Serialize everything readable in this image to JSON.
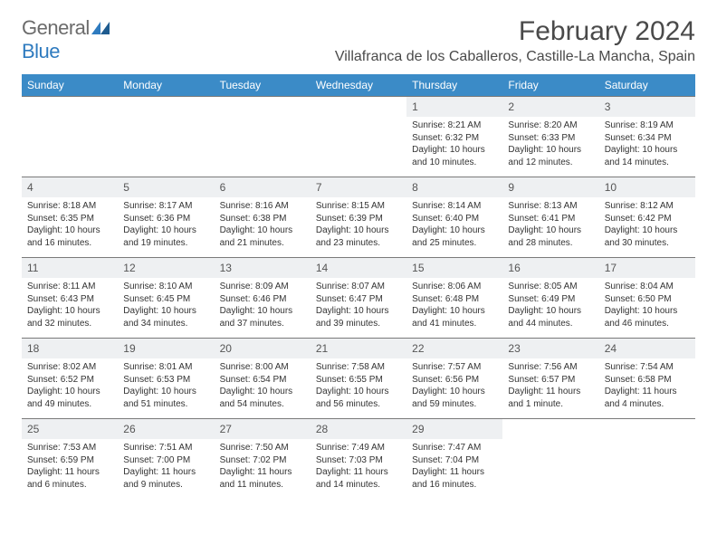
{
  "brand": {
    "part1": "General",
    "part2": "Blue"
  },
  "header": {
    "month_title": "February 2024",
    "location": "Villafranca de los Caballeros, Castille-La Mancha, Spain"
  },
  "colors": {
    "header_bg": "#3b8bc7",
    "header_fg": "#ffffff",
    "daynum_bg": "#eef0f2",
    "border": "#7a7a7a",
    "text": "#333333",
    "brand_gray": "#6b6b6b",
    "brand_blue": "#2f7bbf"
  },
  "day_names": [
    "Sunday",
    "Monday",
    "Tuesday",
    "Wednesday",
    "Thursday",
    "Friday",
    "Saturday"
  ],
  "weeks": [
    [
      null,
      null,
      null,
      null,
      {
        "n": "1",
        "sr": "Sunrise: 8:21 AM",
        "ss": "Sunset: 6:32 PM",
        "dl": "Daylight: 10 hours and 10 minutes."
      },
      {
        "n": "2",
        "sr": "Sunrise: 8:20 AM",
        "ss": "Sunset: 6:33 PM",
        "dl": "Daylight: 10 hours and 12 minutes."
      },
      {
        "n": "3",
        "sr": "Sunrise: 8:19 AM",
        "ss": "Sunset: 6:34 PM",
        "dl": "Daylight: 10 hours and 14 minutes."
      }
    ],
    [
      {
        "n": "4",
        "sr": "Sunrise: 8:18 AM",
        "ss": "Sunset: 6:35 PM",
        "dl": "Daylight: 10 hours and 16 minutes."
      },
      {
        "n": "5",
        "sr": "Sunrise: 8:17 AM",
        "ss": "Sunset: 6:36 PM",
        "dl": "Daylight: 10 hours and 19 minutes."
      },
      {
        "n": "6",
        "sr": "Sunrise: 8:16 AM",
        "ss": "Sunset: 6:38 PM",
        "dl": "Daylight: 10 hours and 21 minutes."
      },
      {
        "n": "7",
        "sr": "Sunrise: 8:15 AM",
        "ss": "Sunset: 6:39 PM",
        "dl": "Daylight: 10 hours and 23 minutes."
      },
      {
        "n": "8",
        "sr": "Sunrise: 8:14 AM",
        "ss": "Sunset: 6:40 PM",
        "dl": "Daylight: 10 hours and 25 minutes."
      },
      {
        "n": "9",
        "sr": "Sunrise: 8:13 AM",
        "ss": "Sunset: 6:41 PM",
        "dl": "Daylight: 10 hours and 28 minutes."
      },
      {
        "n": "10",
        "sr": "Sunrise: 8:12 AM",
        "ss": "Sunset: 6:42 PM",
        "dl": "Daylight: 10 hours and 30 minutes."
      }
    ],
    [
      {
        "n": "11",
        "sr": "Sunrise: 8:11 AM",
        "ss": "Sunset: 6:43 PM",
        "dl": "Daylight: 10 hours and 32 minutes."
      },
      {
        "n": "12",
        "sr": "Sunrise: 8:10 AM",
        "ss": "Sunset: 6:45 PM",
        "dl": "Daylight: 10 hours and 34 minutes."
      },
      {
        "n": "13",
        "sr": "Sunrise: 8:09 AM",
        "ss": "Sunset: 6:46 PM",
        "dl": "Daylight: 10 hours and 37 minutes."
      },
      {
        "n": "14",
        "sr": "Sunrise: 8:07 AM",
        "ss": "Sunset: 6:47 PM",
        "dl": "Daylight: 10 hours and 39 minutes."
      },
      {
        "n": "15",
        "sr": "Sunrise: 8:06 AM",
        "ss": "Sunset: 6:48 PM",
        "dl": "Daylight: 10 hours and 41 minutes."
      },
      {
        "n": "16",
        "sr": "Sunrise: 8:05 AM",
        "ss": "Sunset: 6:49 PM",
        "dl": "Daylight: 10 hours and 44 minutes."
      },
      {
        "n": "17",
        "sr": "Sunrise: 8:04 AM",
        "ss": "Sunset: 6:50 PM",
        "dl": "Daylight: 10 hours and 46 minutes."
      }
    ],
    [
      {
        "n": "18",
        "sr": "Sunrise: 8:02 AM",
        "ss": "Sunset: 6:52 PM",
        "dl": "Daylight: 10 hours and 49 minutes."
      },
      {
        "n": "19",
        "sr": "Sunrise: 8:01 AM",
        "ss": "Sunset: 6:53 PM",
        "dl": "Daylight: 10 hours and 51 minutes."
      },
      {
        "n": "20",
        "sr": "Sunrise: 8:00 AM",
        "ss": "Sunset: 6:54 PM",
        "dl": "Daylight: 10 hours and 54 minutes."
      },
      {
        "n": "21",
        "sr": "Sunrise: 7:58 AM",
        "ss": "Sunset: 6:55 PM",
        "dl": "Daylight: 10 hours and 56 minutes."
      },
      {
        "n": "22",
        "sr": "Sunrise: 7:57 AM",
        "ss": "Sunset: 6:56 PM",
        "dl": "Daylight: 10 hours and 59 minutes."
      },
      {
        "n": "23",
        "sr": "Sunrise: 7:56 AM",
        "ss": "Sunset: 6:57 PM",
        "dl": "Daylight: 11 hours and 1 minute."
      },
      {
        "n": "24",
        "sr": "Sunrise: 7:54 AM",
        "ss": "Sunset: 6:58 PM",
        "dl": "Daylight: 11 hours and 4 minutes."
      }
    ],
    [
      {
        "n": "25",
        "sr": "Sunrise: 7:53 AM",
        "ss": "Sunset: 6:59 PM",
        "dl": "Daylight: 11 hours and 6 minutes."
      },
      {
        "n": "26",
        "sr": "Sunrise: 7:51 AM",
        "ss": "Sunset: 7:00 PM",
        "dl": "Daylight: 11 hours and 9 minutes."
      },
      {
        "n": "27",
        "sr": "Sunrise: 7:50 AM",
        "ss": "Sunset: 7:02 PM",
        "dl": "Daylight: 11 hours and 11 minutes."
      },
      {
        "n": "28",
        "sr": "Sunrise: 7:49 AM",
        "ss": "Sunset: 7:03 PM",
        "dl": "Daylight: 11 hours and 14 minutes."
      },
      {
        "n": "29",
        "sr": "Sunrise: 7:47 AM",
        "ss": "Sunset: 7:04 PM",
        "dl": "Daylight: 11 hours and 16 minutes."
      },
      null,
      null
    ]
  ]
}
